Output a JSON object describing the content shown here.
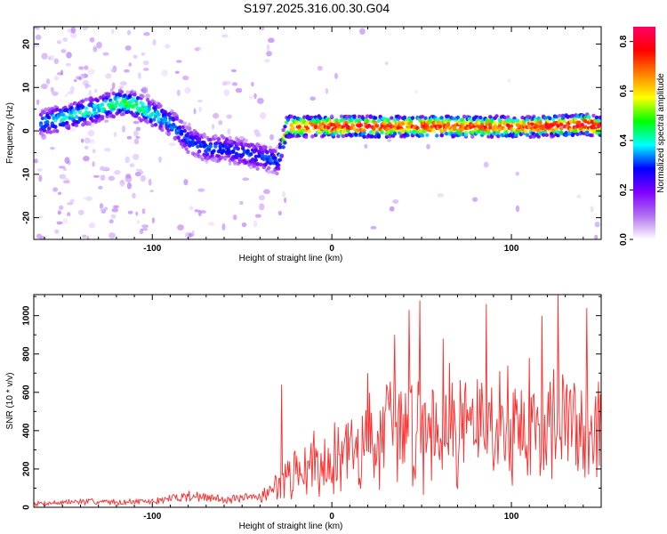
{
  "figure_title": "S197.2025.316.00.30.G04",
  "chart_data": [
    {
      "type": "heatmap",
      "title": "",
      "xlabel": "Height of straight line (km)",
      "ylabel": "Frequency (Hz)",
      "xlim": [
        -166,
        150
      ],
      "ylim": [
        -25,
        24
      ],
      "xticks": [
        -100,
        0,
        100
      ],
      "yticks": [
        -20,
        -10,
        0,
        10,
        20
      ],
      "colorbar": {
        "label": "Normalized spectral amplitude",
        "range": [
          0.0,
          0.86
        ],
        "ticks": [
          0.0,
          0.2,
          0.4,
          0.6,
          0.8
        ],
        "colors": [
          "#ffffff",
          "#b070f0",
          "#8000ff",
          "#0000ff",
          "#00ffff",
          "#00ff00",
          "#ffff00",
          "#ff8000",
          "#ff0000",
          "#ff0066"
        ]
      },
      "ridge": {
        "x": [
          -160,
          -150,
          -140,
          -130,
          -120,
          -110,
          -100,
          -90,
          -80,
          -70,
          -60,
          -50,
          -40,
          -30,
          -25,
          -10,
          0,
          20,
          40,
          60,
          80,
          100,
          120,
          140,
          150
        ],
        "freq": [
          2.0,
          3.0,
          4.0,
          5.0,
          6.5,
          6.0,
          4.0,
          2.0,
          -2.0,
          -4.0,
          -4.0,
          -5.0,
          -6.0,
          -7.0,
          1.0,
          1.0,
          1.0,
          1.0,
          1.0,
          1.0,
          1.0,
          1.0,
          1.0,
          1.5,
          1.0
        ],
        "amplitude": [
          0.35,
          0.4,
          0.4,
          0.4,
          0.45,
          0.45,
          0.4,
          0.35,
          0.3,
          0.3,
          0.3,
          0.3,
          0.3,
          0.3,
          0.7,
          0.72,
          0.75,
          0.75,
          0.72,
          0.75,
          0.72,
          0.72,
          0.75,
          0.8,
          0.75
        ]
      }
    },
    {
      "type": "line",
      "title": "",
      "xlabel": "Height of straight line (km)",
      "ylabel": "SNR (10 * v/v)",
      "xlim": [
        -166,
        150
      ],
      "ylim": [
        0,
        1110
      ],
      "xticks": [
        -100,
        0,
        100
      ],
      "yticks": [
        0,
        200,
        400,
        600,
        800,
        1000
      ],
      "series": [
        {
          "name": "SNR",
          "color": "#ff2a2a",
          "x": [
            -166,
            -150,
            -140,
            -120,
            -100,
            -90,
            -85,
            -80,
            -70,
            -60,
            -50,
            -45,
            -40,
            -35,
            -30,
            -27,
            -20,
            -10,
            0,
            10,
            20,
            30,
            40,
            45,
            50,
            60,
            70,
            80,
            90,
            100,
            110,
            120,
            125,
            130,
            140,
            150
          ],
          "mean": [
            20,
            25,
            30,
            28,
            30,
            45,
            55,
            60,
            50,
            45,
            40,
            50,
            60,
            80,
            120,
            140,
            180,
            220,
            260,
            300,
            340,
            380,
            420,
            440,
            440,
            440,
            450,
            440,
            430,
            420,
            420,
            430,
            440,
            440,
            430,
            420
          ],
          "spread": [
            12,
            15,
            18,
            15,
            15,
            22,
            30,
            35,
            28,
            25,
            25,
            30,
            35,
            50,
            80,
            110,
            120,
            150,
            180,
            220,
            260,
            280,
            300,
            320,
            320,
            310,
            320,
            300,
            300,
            290,
            290,
            300,
            320,
            320,
            300,
            290
          ],
          "peaks": [
            {
              "x": -28,
              "y": 640
            },
            {
              "x": -10,
              "y": 400
            },
            {
              "x": 20,
              "y": 700
            },
            {
              "x": 35,
              "y": 900
            },
            {
              "x": 43,
              "y": 1030
            },
            {
              "x": 49,
              "y": 1080
            },
            {
              "x": 62,
              "y": 880
            },
            {
              "x": 86,
              "y": 1060
            },
            {
              "x": 98,
              "y": 740
            },
            {
              "x": 110,
              "y": 780
            },
            {
              "x": 117,
              "y": 1000
            },
            {
              "x": 126,
              "y": 1110
            },
            {
              "x": 142,
              "y": 1040
            }
          ]
        }
      ]
    }
  ]
}
